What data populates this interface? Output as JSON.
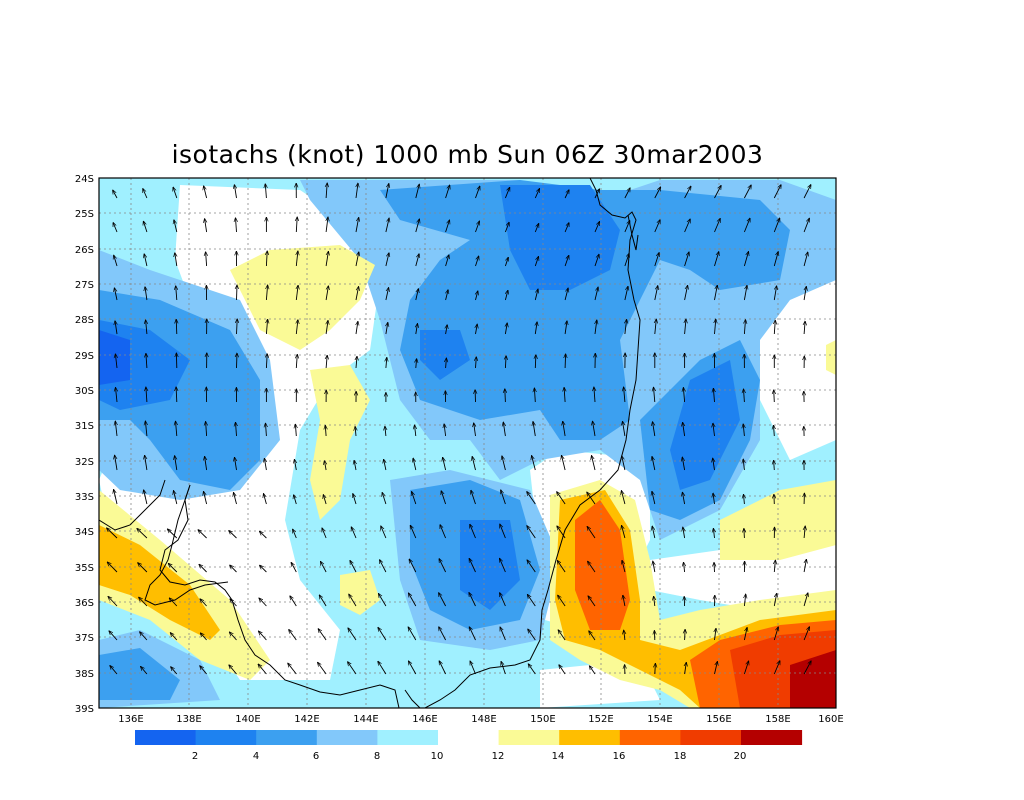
{
  "title": "isotachs (knot) 1000 mb Sun 06Z 30mar2003",
  "lat_labels": [
    "24S",
    "25S",
    "26S",
    "27S",
    "28S",
    "29S",
    "30S",
    "31S",
    "32S",
    "33S",
    "34S",
    "35S",
    "36S",
    "37S",
    "38S",
    "39S"
  ],
  "lon_labels": [
    "136E",
    "138E",
    "140E",
    "142E",
    "144E",
    "146E",
    "148E",
    "150E",
    "152E",
    "154E",
    "156E",
    "158E",
    "160E"
  ],
  "colorbar": {
    "labels": [
      "2",
      "4",
      "6",
      "8",
      "10",
      "12",
      "14",
      "16",
      "18",
      "20"
    ],
    "colors": [
      "#1464f0",
      "#1e82f0",
      "#3ca0f0",
      "#82c8fa",
      "#a0f0ff",
      "#ffffff",
      "#fafa96",
      "#ffbe00",
      "#ff6400",
      "#f03c00",
      "#b40000"
    ]
  },
  "map": {
    "lon_range": [
      135.5,
      160
    ],
    "lat_range": [
      -39,
      -24
    ],
    "grid_lines": "dotted",
    "field": "isotachs",
    "units": "knot",
    "vectors": "wind arrows",
    "coastline": "Australia (New South Wales / Victoria)"
  }
}
